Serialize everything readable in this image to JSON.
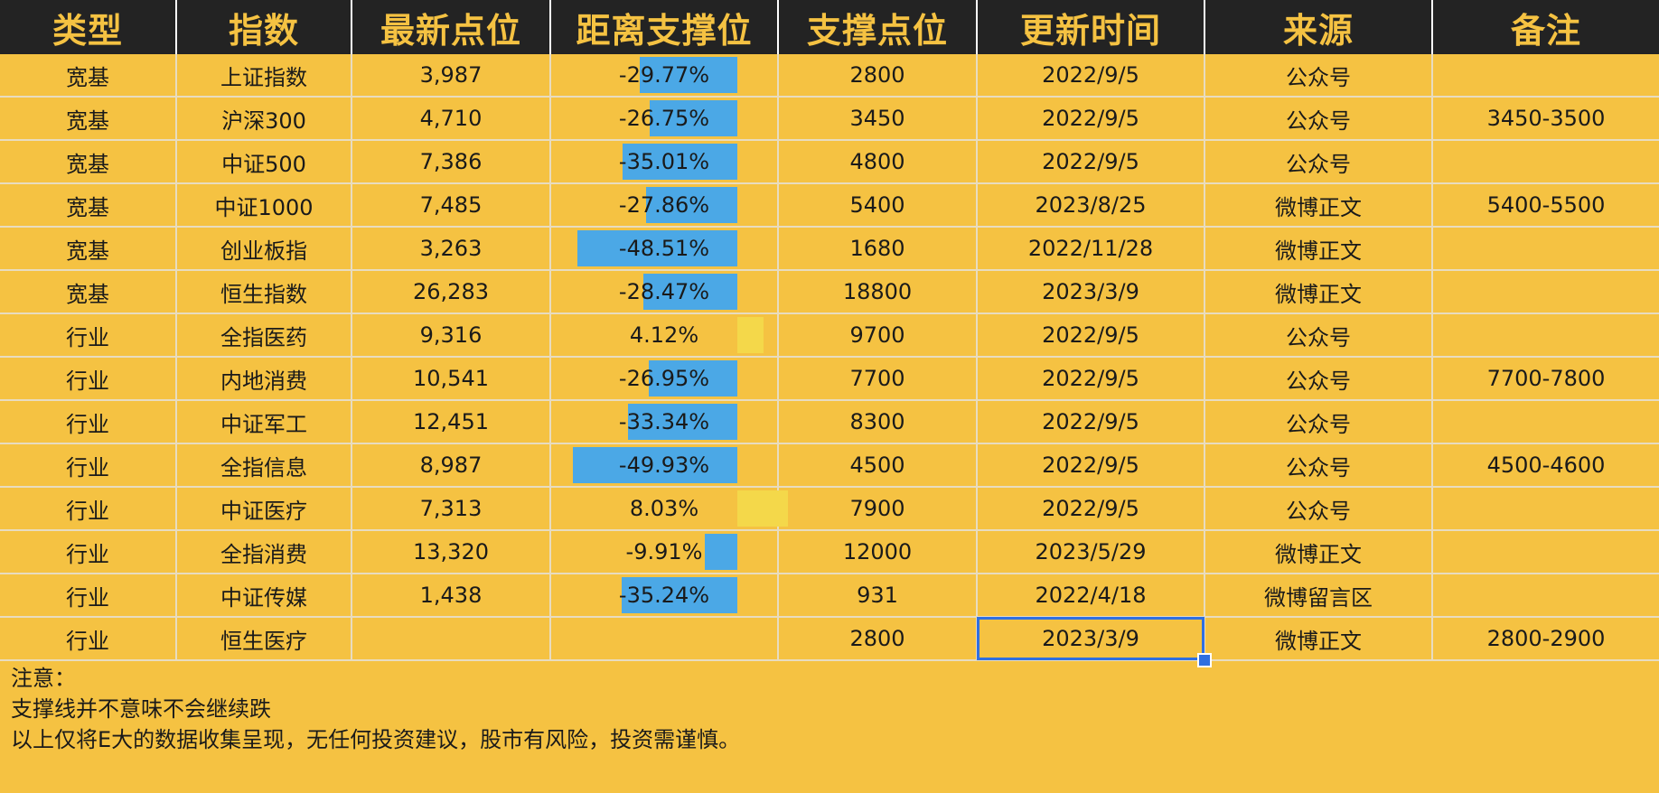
{
  "header": {
    "columns": [
      "类型",
      "指数",
      "最新点位",
      "距离支撑位",
      "支撑点位",
      "更新时间",
      "来源",
      "备注"
    ]
  },
  "rows": [
    {
      "type": "宽基",
      "index": "上证指数",
      "latest": "3,987",
      "distance": "-29.77%",
      "distance_value": -29.77,
      "support": "2800",
      "date": "2022/9/5",
      "source": "公众号",
      "note": ""
    },
    {
      "type": "宽基",
      "index": "沪深300",
      "latest": "4,710",
      "distance": "-26.75%",
      "distance_value": -26.75,
      "support": "3450",
      "date": "2022/9/5",
      "source": "公众号",
      "note": "3450-3500"
    },
    {
      "type": "宽基",
      "index": "中证500",
      "latest": "7,386",
      "distance": "-35.01%",
      "distance_value": -35.01,
      "support": "4800",
      "date": "2022/9/5",
      "source": "公众号",
      "note": ""
    },
    {
      "type": "宽基",
      "index": "中证1000",
      "latest": "7,485",
      "distance": "-27.86%",
      "distance_value": -27.86,
      "support": "5400",
      "date": "2023/8/25",
      "source": "微博正文",
      "note": "5400-5500"
    },
    {
      "type": "宽基",
      "index": "创业板指",
      "latest": "3,263",
      "distance": "-48.51%",
      "distance_value": -48.51,
      "support": "1680",
      "date": "2022/11/28",
      "source": "微博正文",
      "note": ""
    },
    {
      "type": "宽基",
      "index": "恒生指数",
      "latest": "26,283",
      "distance": "-28.47%",
      "distance_value": -28.47,
      "support": "18800",
      "date": "2023/3/9",
      "source": "微博正文",
      "note": ""
    },
    {
      "type": "行业",
      "index": "全指医药",
      "latest": "9,316",
      "distance": "4.12%",
      "distance_value": 4.12,
      "support": "9700",
      "date": "2022/9/5",
      "source": "公众号",
      "note": ""
    },
    {
      "type": "行业",
      "index": "内地消费",
      "latest": "10,541",
      "distance": "-26.95%",
      "distance_value": -26.95,
      "support": "7700",
      "date": "2022/9/5",
      "source": "公众号",
      "note": "7700-7800"
    },
    {
      "type": "行业",
      "index": "中证军工",
      "latest": "12,451",
      "distance": "-33.34%",
      "distance_value": -33.34,
      "support": "8300",
      "date": "2022/9/5",
      "source": "公众号",
      "note": ""
    },
    {
      "type": "行业",
      "index": "全指信息",
      "latest": "8,987",
      "distance": "-49.93%",
      "distance_value": -49.93,
      "support": "4500",
      "date": "2022/9/5",
      "source": "公众号",
      "note": "4500-4600"
    },
    {
      "type": "行业",
      "index": "中证医疗",
      "latest": "7,313",
      "distance": "8.03%",
      "distance_value": 8.03,
      "support": "7900",
      "date": "2022/9/5",
      "source": "公众号",
      "note": ""
    },
    {
      "type": "行业",
      "index": "全指消费",
      "latest": "13,320",
      "distance": "-9.91%",
      "distance_value": -9.91,
      "support": "12000",
      "date": "2023/5/29",
      "source": "微博正文",
      "note": ""
    },
    {
      "type": "行业",
      "index": "中证传媒",
      "latest": "1,438",
      "distance": "-35.24%",
      "distance_value": -35.24,
      "support": "931",
      "date": "2022/4/18",
      "source": "微博留言区",
      "note": ""
    },
    {
      "type": "行业",
      "index": "恒生医疗",
      "latest": "",
      "distance": "",
      "distance_value": null,
      "support": "2800",
      "date": "2023/3/9",
      "source": "微博正文",
      "note": "2800-2900"
    }
  ],
  "notes": {
    "line1": "注意：",
    "line2": "支撑线并不意味不会继续跌",
    "line3": "以上仅将E大的数据收集呈现，无任何投资建议，股市有风险，投资需谨慎。"
  },
  "colors": {
    "background": "#F5C242",
    "header_bg": "#232323",
    "header_text": "#F5C242",
    "bar_negative": "#4BA8E6",
    "bar_positive": "#F4D84A",
    "selection": "#2F6FE0"
  }
}
